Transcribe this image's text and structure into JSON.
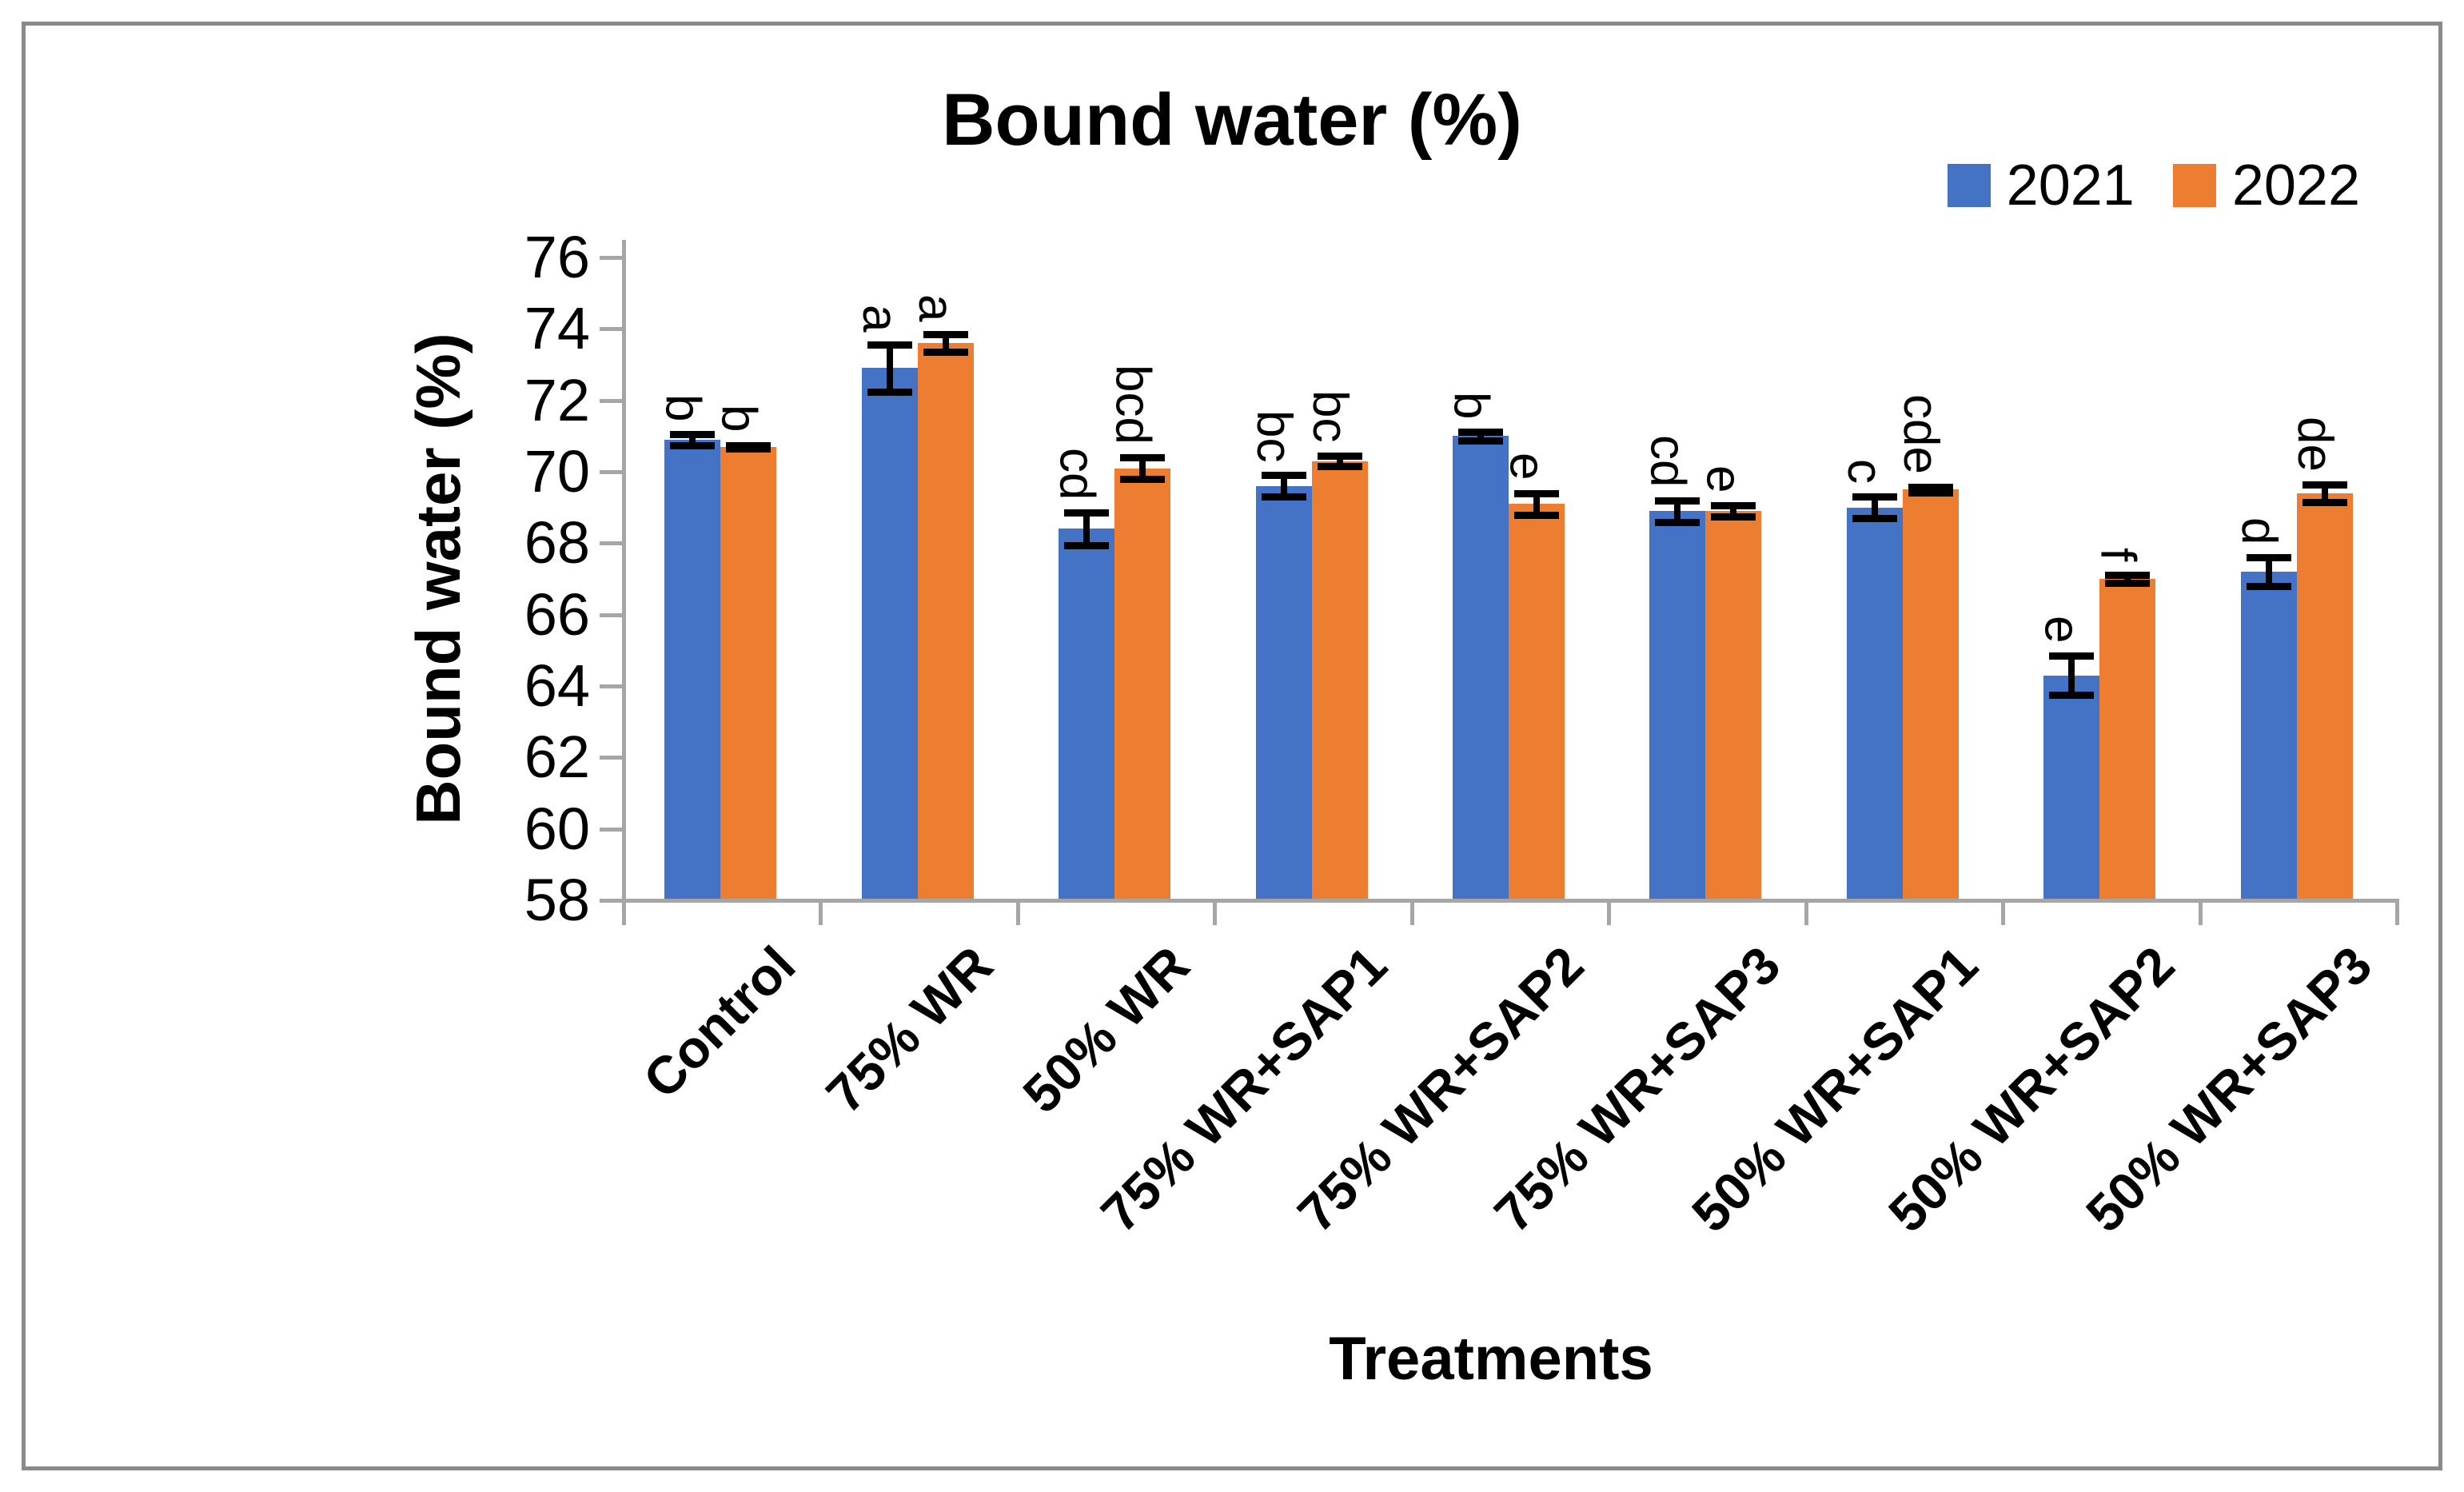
{
  "figure": {
    "background_color": "#ffffff",
    "frame_color": "#8a8a8a",
    "axis_color": "#a6a6a6",
    "error_bar_color": "#000000"
  },
  "title": "Bound water (%)",
  "legend": {
    "items": [
      {
        "label": "2021",
        "color": "#4472C4"
      },
      {
        "label": "2022",
        "color": "#ED7D31"
      }
    ]
  },
  "y_axis": {
    "title": "Bound water (%)",
    "tick_labels": [
      "58",
      "60",
      "62",
      "64",
      "66",
      "68",
      "70",
      "72",
      "74",
      "76"
    ]
  },
  "x_axis": {
    "title": "Treatments"
  },
  "chart_data": {
    "type": "bar",
    "title": "Bound water (%)",
    "xlabel": "Treatments",
    "ylabel": "Bound water (%)",
    "ylim": [
      58,
      76
    ],
    "ytick_step": 2,
    "grid": false,
    "legend_position": "top-right",
    "categories": [
      "Control",
      "75% WR",
      "50% WR",
      "75% WR+SAP1",
      "75% WR+SAP2",
      "75% WR+SAP3",
      "50% WR+SAP1",
      "50% WR+SAP2",
      "50% WR+SAP3"
    ],
    "series": [
      {
        "name": "2021",
        "color": "#4472C4",
        "values": [
          70.9,
          72.9,
          68.4,
          69.6,
          71.0,
          68.9,
          69.0,
          64.3,
          67.2
        ],
        "errors": [
          0.15,
          0.65,
          0.45,
          0.3,
          0.12,
          0.3,
          0.3,
          0.55,
          0.4
        ],
        "letters": [
          "b",
          "a",
          "cd",
          "bc",
          "b",
          "cd",
          "c",
          "e",
          "d"
        ]
      },
      {
        "name": "2022",
        "color": "#ED7D31",
        "values": [
          70.7,
          73.6,
          70.1,
          70.3,
          69.1,
          68.9,
          69.5,
          67.0,
          69.4
        ],
        "errors": [
          0.05,
          0.25,
          0.3,
          0.15,
          0.3,
          0.15,
          0.08,
          0.12,
          0.25
        ],
        "letters": [
          "b",
          "a",
          "bcd",
          "bc",
          "e",
          "e",
          "cde",
          "f",
          "de"
        ]
      }
    ]
  }
}
